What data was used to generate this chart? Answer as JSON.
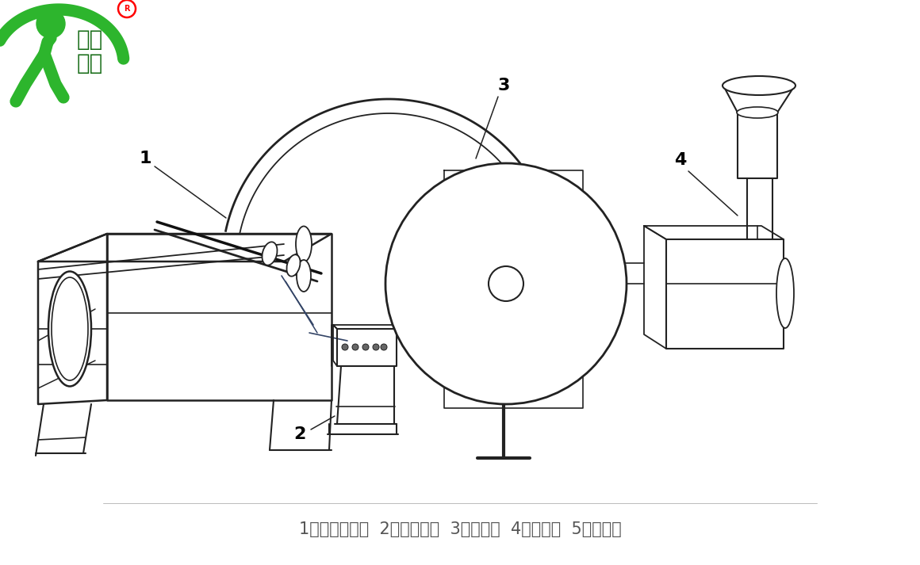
{
  "bg_color": "#ffffff",
  "logo_text1": "凯迪",
  "logo_text2": "正大",
  "logo_green": "#2db52d",
  "logo_dark_green": "#1a6e1a",
  "caption": "1、静电驻极棒  2、高压电源  3、接收辊  4、熔喷头  5、收卷辊",
  "caption_color": "#555555",
  "caption_fontsize": 15,
  "line_color": "#222222",
  "line_width": 1.5,
  "figsize": [
    11.6,
    7.13
  ],
  "dpi": 100
}
